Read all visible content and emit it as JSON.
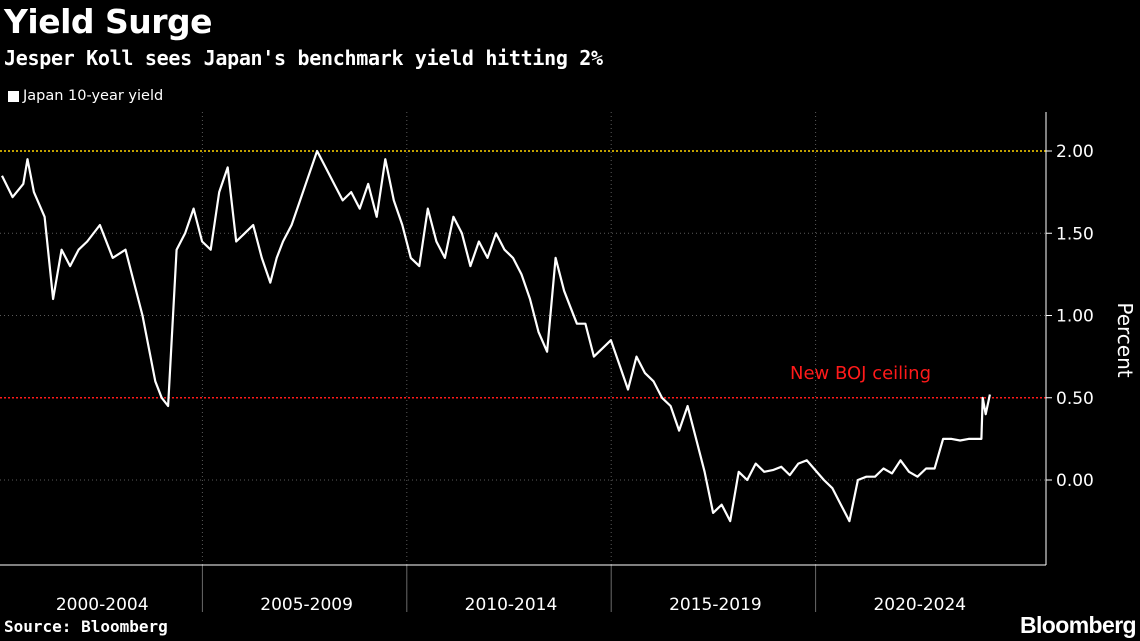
{
  "header": {
    "title": "Yield Surge",
    "subtitle": "Jesper Koll sees Japan's benchmark yield hitting 2%"
  },
  "footer": {
    "source": "Source: Bloomberg",
    "brand": "Bloomberg"
  },
  "colors": {
    "background": "#000000",
    "series": "#ffffff",
    "target_line": "#ffd400",
    "ceiling_line": "#ff1a1a",
    "grid": "#5a5a5a"
  },
  "chart_data": {
    "type": "line",
    "title": "Yield Surge",
    "subtitle": "Jesper Koll sees Japan's benchmark yield hitting 2%",
    "xlabel": "",
    "ylabel": "Percent",
    "ylim": [
      -0.5,
      2.2
    ],
    "xlim": [
      2000.0,
      2024.0
    ],
    "grid": true,
    "legend": "top-left",
    "y_ticks": [
      2.0,
      1.5,
      1.0,
      0.5,
      0.0
    ],
    "y_tick_labels": [
      "2.00",
      "1.50",
      "1.00",
      "0.50",
      "0.00"
    ],
    "categories": [
      "2000-2004",
      "2005-2009",
      "2010-2014",
      "2015-2019",
      "2020-2024"
    ],
    "series": [
      {
        "name": "Japan 10-year yield",
        "x": [
          2000.0,
          2000.25,
          2000.5,
          2000.6,
          2000.75,
          2001.0,
          2001.2,
          2001.4,
          2001.6,
          2001.8,
          2002.0,
          2002.3,
          2002.6,
          2002.9,
          2003.1,
          2003.3,
          2003.45,
          2003.6,
          2003.75,
          2003.9,
          2004.1,
          2004.3,
          2004.5,
          2004.7,
          2004.9,
          2005.1,
          2005.3,
          2005.5,
          2005.7,
          2005.9,
          2006.1,
          2006.3,
          2006.45,
          2006.6,
          2006.8,
          2007.0,
          2007.2,
          2007.4,
          2007.6,
          2007.8,
          2008.0,
          2008.2,
          2008.4,
          2008.6,
          2008.8,
          2009.0,
          2009.2,
          2009.4,
          2009.6,
          2009.8,
          2010.0,
          2010.2,
          2010.4,
          2010.6,
          2010.8,
          2011.0,
          2011.2,
          2011.4,
          2011.6,
          2011.8,
          2012.0,
          2012.2,
          2012.4,
          2012.6,
          2012.8,
          2013.0,
          2013.2,
          2013.35,
          2013.5,
          2013.7,
          2013.9,
          2014.1,
          2014.3,
          2014.5,
          2014.7,
          2014.9,
          2015.1,
          2015.3,
          2015.5,
          2015.7,
          2015.9,
          2016.1,
          2016.3,
          2016.5,
          2016.7,
          2016.9,
          2017.1,
          2017.3,
          2017.5,
          2017.7,
          2017.9,
          2018.1,
          2018.3,
          2018.5,
          2018.7,
          2018.9,
          2019.1,
          2019.3,
          2019.5,
          2019.7,
          2019.9,
          2020.1,
          2020.3,
          2020.5,
          2020.7,
          2020.9,
          2021.1,
          2021.3,
          2021.5,
          2021.7,
          2021.9,
          2022.1,
          2022.3,
          2022.5,
          2022.7,
          2022.9,
          2023.0,
          2023.03,
          2023.1,
          2023.2
        ],
        "values": [
          1.85,
          1.72,
          1.8,
          1.95,
          1.75,
          1.6,
          1.1,
          1.4,
          1.3,
          1.4,
          1.45,
          1.55,
          1.35,
          1.4,
          1.2,
          1.0,
          0.8,
          0.6,
          0.5,
          0.45,
          1.4,
          1.5,
          1.65,
          1.45,
          1.4,
          1.75,
          1.9,
          1.45,
          1.5,
          1.55,
          1.35,
          1.2,
          1.35,
          1.45,
          1.55,
          1.7,
          1.85,
          2.0,
          1.9,
          1.8,
          1.7,
          1.75,
          1.65,
          1.8,
          1.6,
          1.95,
          1.7,
          1.55,
          1.35,
          1.3,
          1.65,
          1.45,
          1.35,
          1.6,
          1.5,
          1.3,
          1.45,
          1.35,
          1.5,
          1.4,
          1.35,
          1.25,
          1.1,
          0.9,
          0.78,
          1.35,
          1.15,
          1.05,
          0.95,
          0.95,
          0.75,
          0.8,
          0.85,
          0.7,
          0.55,
          0.75,
          0.65,
          0.6,
          0.5,
          0.45,
          0.3,
          0.45,
          0.25,
          0.05,
          -0.2,
          -0.15,
          -0.25,
          0.05,
          0.0,
          0.1,
          0.05,
          0.06,
          0.08,
          0.03,
          0.1,
          0.12,
          0.06,
          0.0,
          -0.05,
          -0.15,
          -0.25,
          0.0,
          0.02,
          0.02,
          0.07,
          0.04,
          0.12,
          0.05,
          0.02,
          0.07,
          0.07,
          0.25,
          0.25,
          0.24,
          0.25,
          0.25,
          0.25,
          0.5,
          0.4,
          0.52
        ]
      }
    ],
    "reference_lines": [
      {
        "value": 2.0,
        "color": "#ffd400"
      },
      {
        "value": 0.5,
        "color": "#ff1a1a",
        "label": "New BOJ ceiling"
      }
    ]
  }
}
